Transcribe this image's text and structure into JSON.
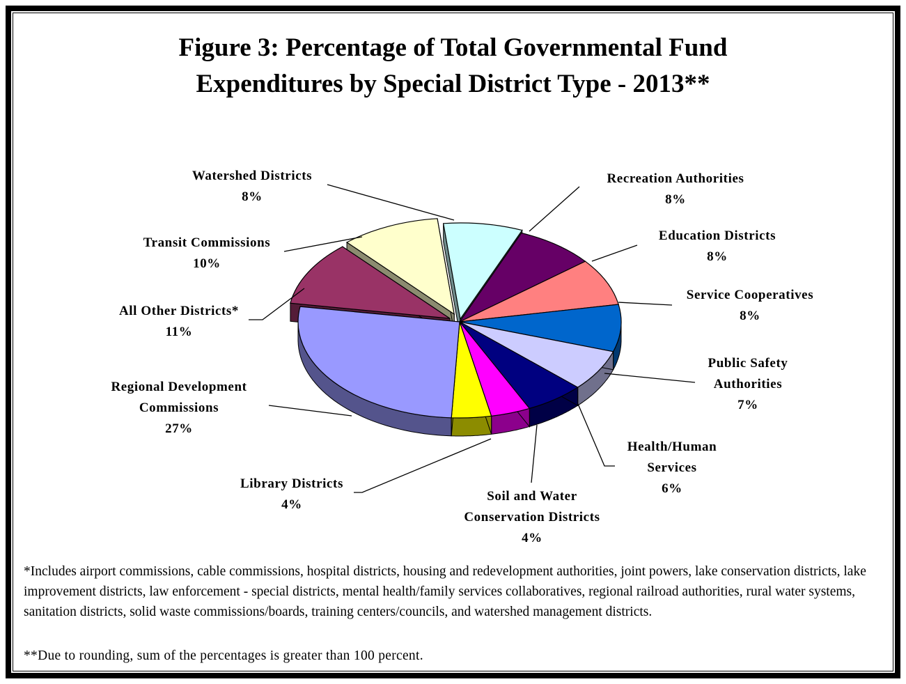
{
  "title_line1": "Figure 3:  Percentage of Total Governmental Fund",
  "title_line2": "Expenditures by Special District Type - 2013**",
  "chart_data": {
    "type": "pie",
    "title": "Figure 3:  Percentage of Total Governmental Fund Expenditures by Special District Type - 2013**",
    "slices": [
      {
        "label": [
          "Watershed Districts"
        ],
        "value": 8,
        "value_label": "8%",
        "color": "#CCFFFF"
      },
      {
        "label": [
          "Recreation Authorities"
        ],
        "value": 8,
        "value_label": "8%",
        "color": "#660066"
      },
      {
        "label": [
          "Education Districts"
        ],
        "value": 8,
        "value_label": "8%",
        "color": "#FF8080"
      },
      {
        "label": [
          "Service Cooperatives"
        ],
        "value": 8,
        "value_label": "8%",
        "color": "#0066CC"
      },
      {
        "label": [
          "Public Safety",
          "Authorities"
        ],
        "value": 7,
        "value_label": "7%",
        "color": "#CCCCFF"
      },
      {
        "label": [
          "Health/Human",
          "Services"
        ],
        "value": 6,
        "value_label": "6%",
        "color": "#000080"
      },
      {
        "label": [
          "Soil and Water",
          "Conservation Districts"
        ],
        "value": 4,
        "value_label": "4%",
        "color": "#FF00FF"
      },
      {
        "label": [
          "Library Districts"
        ],
        "value": 4,
        "value_label": "4%",
        "color": "#FFFF00"
      },
      {
        "label": [
          "Regional Development",
          "Commissions"
        ],
        "value": 27,
        "value_label": "27%",
        "color": "#9999FF"
      },
      {
        "label": [
          "All Other Districts*"
        ],
        "value": 11,
        "value_label": "11%",
        "color": "#993366"
      },
      {
        "label": [
          "Transit Commissions"
        ],
        "value": 10,
        "value_label": "10%",
        "color": "#FFFFCC"
      }
    ]
  },
  "footnote_1": "*Includes airport commissions, cable commissions, hospital districts, housing and redevelopment authorities, joint powers, lake conservation districts, lake improvement districts, law enforcement - special districts, mental health/family services collaboratives, regional railroad authorities, rural water systems, sanitation districts, solid waste commissions/boards, training centers/councils, and watershed management districts.",
  "footnote_2": "**Due to rounding, sum of the percentages is greater than 100 percent."
}
